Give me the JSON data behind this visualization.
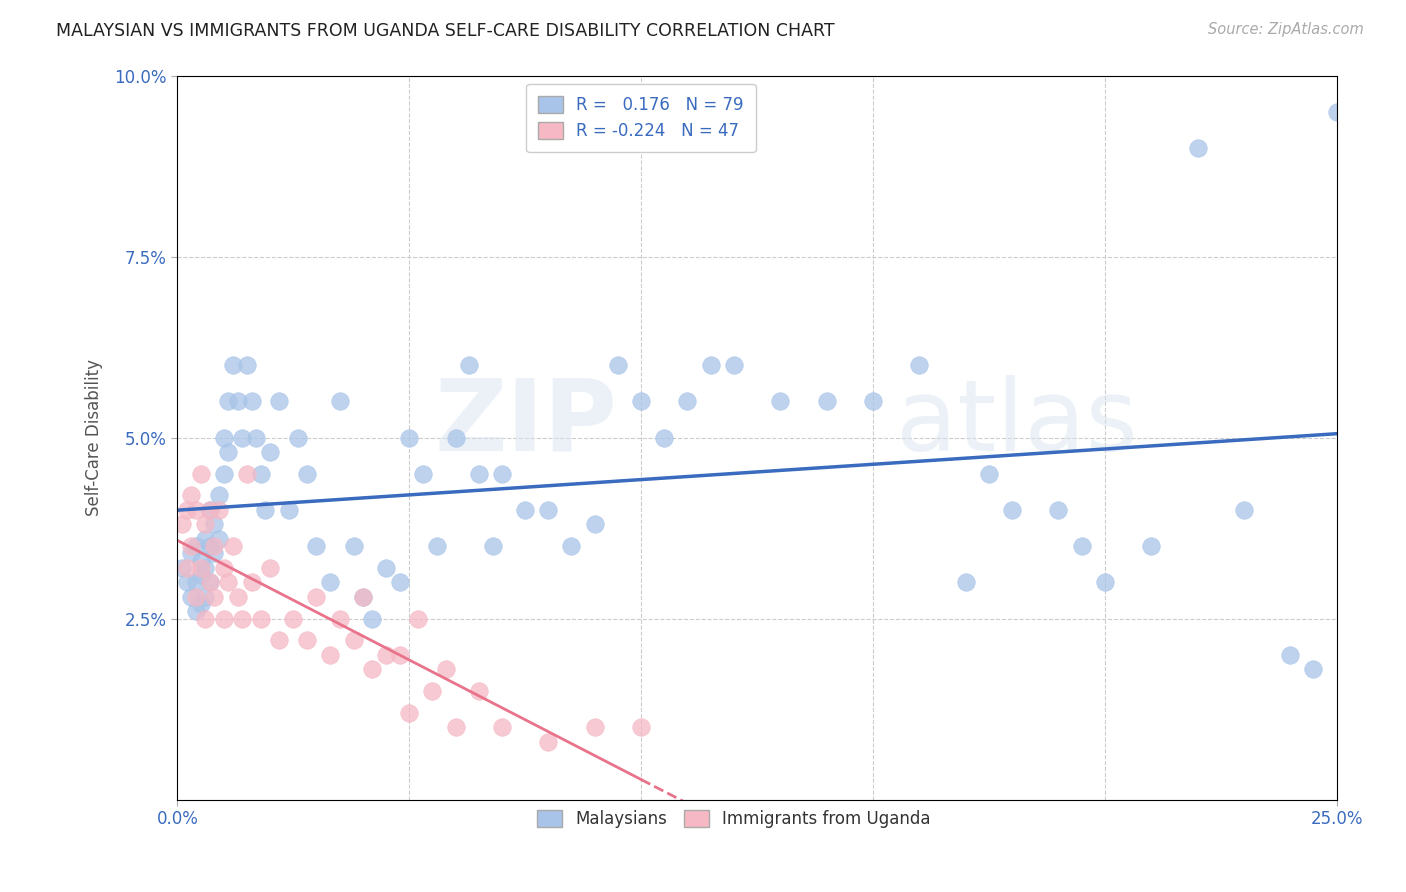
{
  "title": "MALAYSIAN VS IMMIGRANTS FROM UGANDA SELF-CARE DISABILITY CORRELATION CHART",
  "source": "Source: ZipAtlas.com",
  "xlim": [
    0.0,
    0.25
  ],
  "ylim": [
    0.0,
    0.1
  ],
  "xlabel_ticks": [
    "0.0%",
    "25.0%"
  ],
  "xlabel_vals": [
    0.0,
    0.25
  ],
  "ylabel_ticks": [
    "10.0%",
    "7.5%",
    "5.0%",
    "2.5%"
  ],
  "ylabel_vals": [
    0.1,
    0.075,
    0.05,
    0.025
  ],
  "ylabel": "Self-Care Disability",
  "legend_labels": [
    "Malaysians",
    "Immigrants from Uganda"
  ],
  "R_malaysian": 0.176,
  "N_malaysian": 79,
  "R_uganda": -0.224,
  "N_uganda": 47,
  "color_malaysian": "#a8c4e8",
  "color_uganda": "#f5b8c4",
  "line_color_malaysian": "#3a6bbf",
  "line_color_uganda": "#e8738a",
  "watermark_zip": "ZIP",
  "watermark_atlas": "atlas",
  "malaysian_x": [
    0.001,
    0.002,
    0.003,
    0.003,
    0.004,
    0.004,
    0.004,
    0.005,
    0.005,
    0.005,
    0.006,
    0.006,
    0.006,
    0.007,
    0.007,
    0.007,
    0.008,
    0.008,
    0.009,
    0.009,
    0.01,
    0.01,
    0.011,
    0.011,
    0.012,
    0.013,
    0.014,
    0.015,
    0.016,
    0.017,
    0.018,
    0.019,
    0.02,
    0.022,
    0.024,
    0.026,
    0.028,
    0.03,
    0.033,
    0.035,
    0.038,
    0.04,
    0.042,
    0.045,
    0.048,
    0.05,
    0.053,
    0.056,
    0.06,
    0.063,
    0.065,
    0.068,
    0.07,
    0.075,
    0.08,
    0.085,
    0.09,
    0.095,
    0.1,
    0.105,
    0.11,
    0.115,
    0.12,
    0.13,
    0.14,
    0.15,
    0.16,
    0.17,
    0.18,
    0.19,
    0.2,
    0.21,
    0.22,
    0.23,
    0.24,
    0.245,
    0.25,
    0.195,
    0.175
  ],
  "malaysian_y": [
    0.032,
    0.03,
    0.034,
    0.028,
    0.035,
    0.03,
    0.026,
    0.033,
    0.031,
    0.027,
    0.036,
    0.032,
    0.028,
    0.04,
    0.035,
    0.03,
    0.038,
    0.034,
    0.042,
    0.036,
    0.05,
    0.045,
    0.055,
    0.048,
    0.06,
    0.055,
    0.05,
    0.06,
    0.055,
    0.05,
    0.045,
    0.04,
    0.048,
    0.055,
    0.04,
    0.05,
    0.045,
    0.035,
    0.03,
    0.055,
    0.035,
    0.028,
    0.025,
    0.032,
    0.03,
    0.05,
    0.045,
    0.035,
    0.05,
    0.06,
    0.045,
    0.035,
    0.045,
    0.04,
    0.04,
    0.035,
    0.038,
    0.06,
    0.055,
    0.05,
    0.055,
    0.06,
    0.06,
    0.055,
    0.055,
    0.055,
    0.06,
    0.03,
    0.04,
    0.04,
    0.03,
    0.035,
    0.09,
    0.04,
    0.02,
    0.018,
    0.095,
    0.035,
    0.045
  ],
  "uganda_x": [
    0.001,
    0.002,
    0.002,
    0.003,
    0.003,
    0.004,
    0.004,
    0.005,
    0.005,
    0.006,
    0.006,
    0.007,
    0.007,
    0.008,
    0.008,
    0.009,
    0.01,
    0.01,
    0.011,
    0.012,
    0.013,
    0.014,
    0.015,
    0.016,
    0.018,
    0.02,
    0.022,
    0.025,
    0.028,
    0.03,
    0.033,
    0.035,
    0.038,
    0.04,
    0.042,
    0.045,
    0.048,
    0.05,
    0.052,
    0.055,
    0.058,
    0.06,
    0.065,
    0.07,
    0.08,
    0.09,
    0.1
  ],
  "uganda_y": [
    0.038,
    0.04,
    0.032,
    0.042,
    0.035,
    0.04,
    0.028,
    0.045,
    0.032,
    0.038,
    0.025,
    0.04,
    0.03,
    0.035,
    0.028,
    0.04,
    0.032,
    0.025,
    0.03,
    0.035,
    0.028,
    0.025,
    0.045,
    0.03,
    0.025,
    0.032,
    0.022,
    0.025,
    0.022,
    0.028,
    0.02,
    0.025,
    0.022,
    0.028,
    0.018,
    0.02,
    0.02,
    0.012,
    0.025,
    0.015,
    0.018,
    0.01,
    0.015,
    0.01,
    0.008,
    0.01,
    0.01
  ]
}
